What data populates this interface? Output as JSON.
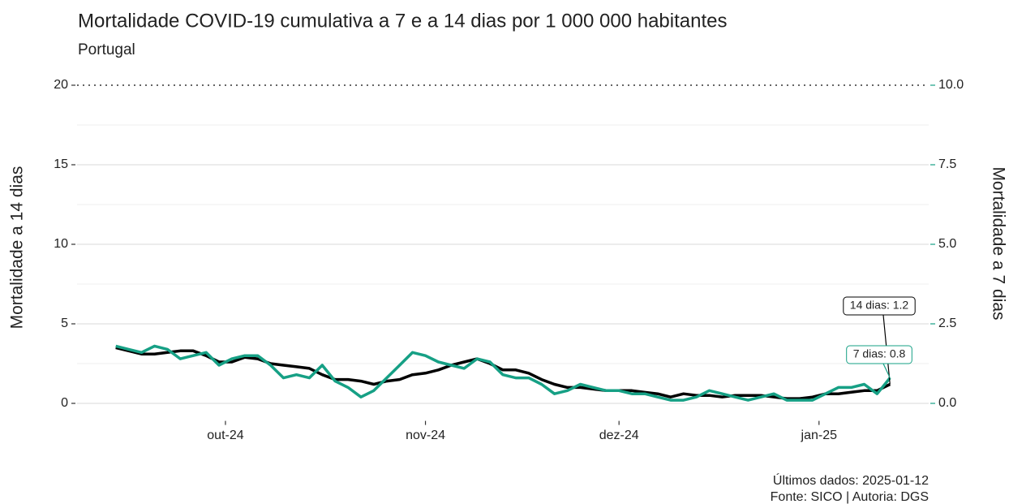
{
  "chart_data": {
    "type": "line",
    "title": "Mortalidade COVID-19 cumulativa a 7 e a 14 dias por 1 000 000 habitantes",
    "subtitle": "Portugal",
    "y_label": "Mortalidade a 14 dias",
    "y2_label": "Mortalidade a 7 dias",
    "caption": [
      "Últimos dados: 2025-01-12",
      "Fonte: SICO | Autoria: DGS"
    ],
    "x": [
      "2024-09-14",
      "2024-09-16",
      "2024-09-18",
      "2024-09-20",
      "2024-09-22",
      "2024-09-24",
      "2024-09-26",
      "2024-09-28",
      "2024-09-30",
      "2024-10-02",
      "2024-10-04",
      "2024-10-06",
      "2024-10-08",
      "2024-10-10",
      "2024-10-12",
      "2024-10-14",
      "2024-10-16",
      "2024-10-18",
      "2024-10-20",
      "2024-10-22",
      "2024-10-24",
      "2024-10-26",
      "2024-10-28",
      "2024-10-30",
      "2024-11-01",
      "2024-11-03",
      "2024-11-05",
      "2024-11-07",
      "2024-11-09",
      "2024-11-11",
      "2024-11-13",
      "2024-11-15",
      "2024-11-17",
      "2024-11-19",
      "2024-11-21",
      "2024-11-23",
      "2024-11-25",
      "2024-11-27",
      "2024-11-29",
      "2024-12-01",
      "2024-12-03",
      "2024-12-05",
      "2024-12-07",
      "2024-12-09",
      "2024-12-11",
      "2024-12-13",
      "2024-12-15",
      "2024-12-17",
      "2024-12-19",
      "2024-12-21",
      "2024-12-23",
      "2024-12-25",
      "2024-12-27",
      "2024-12-29",
      "2024-12-31",
      "2025-01-02",
      "2025-01-04",
      "2025-01-06",
      "2025-01-08",
      "2025-01-10",
      "2025-01-12"
    ],
    "series": [
      {
        "name": "14 dias",
        "color": "#000000",
        "axis": "y",
        "end_label": "14 dias: 1.2",
        "values": [
          3.5,
          3.3,
          3.1,
          3.1,
          3.2,
          3.3,
          3.3,
          3.0,
          2.6,
          2.6,
          2.9,
          2.8,
          2.5,
          2.4,
          2.3,
          2.2,
          1.8,
          1.5,
          1.5,
          1.4,
          1.2,
          1.4,
          1.5,
          1.8,
          1.9,
          2.1,
          2.4,
          2.6,
          2.8,
          2.5,
          2.1,
          2.1,
          1.9,
          1.5,
          1.2,
          1.0,
          1.0,
          0.9,
          0.8,
          0.8,
          0.8,
          0.7,
          0.6,
          0.4,
          0.6,
          0.5,
          0.5,
          0.4,
          0.5,
          0.5,
          0.5,
          0.4,
          0.3,
          0.3,
          0.4,
          0.6,
          0.6,
          0.7,
          0.8,
          0.8,
          1.2
        ]
      },
      {
        "name": "7 dias",
        "color": "#16a085",
        "axis": "y2",
        "end_label": "7 dias: 0.8",
        "values": [
          1.8,
          1.7,
          1.6,
          1.8,
          1.7,
          1.4,
          1.5,
          1.6,
          1.2,
          1.4,
          1.5,
          1.5,
          1.2,
          0.8,
          0.9,
          0.8,
          1.2,
          0.7,
          0.5,
          0.2,
          0.4,
          0.8,
          1.2,
          1.6,
          1.5,
          1.3,
          1.2,
          1.1,
          1.4,
          1.3,
          0.9,
          0.8,
          0.8,
          0.6,
          0.3,
          0.4,
          0.6,
          0.5,
          0.4,
          0.4,
          0.3,
          0.3,
          0.2,
          0.1,
          0.1,
          0.2,
          0.4,
          0.3,
          0.2,
          0.1,
          0.2,
          0.3,
          0.1,
          0.1,
          0.1,
          0.3,
          0.5,
          0.5,
          0.6,
          0.3,
          0.8
        ]
      }
    ],
    "xlim": [
      "2024-09-08",
      "2025-01-18"
    ],
    "xticks": [
      {
        "value": "2024-10-01",
        "label": "out-24"
      },
      {
        "value": "2024-11-01",
        "label": "nov-24"
      },
      {
        "value": "2024-12-01",
        "label": "dez-24"
      },
      {
        "value": "2025-01-01",
        "label": "jan-25"
      }
    ],
    "ylim": [
      -1,
      20
    ],
    "yticks": [
      0,
      5,
      10,
      15,
      20
    ],
    "yminor": [
      2.5,
      7.5,
      12.5,
      17.5
    ],
    "y2lim": [
      -0.5,
      10
    ],
    "y2ticks": [
      {
        "value": 0,
        "label": "0.0"
      },
      {
        "value": 2.5,
        "label": "2.5"
      },
      {
        "value": 5,
        "label": "5.0"
      },
      {
        "value": 7.5,
        "label": "7.5"
      },
      {
        "value": 10,
        "label": "10.0"
      }
    ],
    "y2_color": "#16a085",
    "hline": 20,
    "grid": true
  }
}
